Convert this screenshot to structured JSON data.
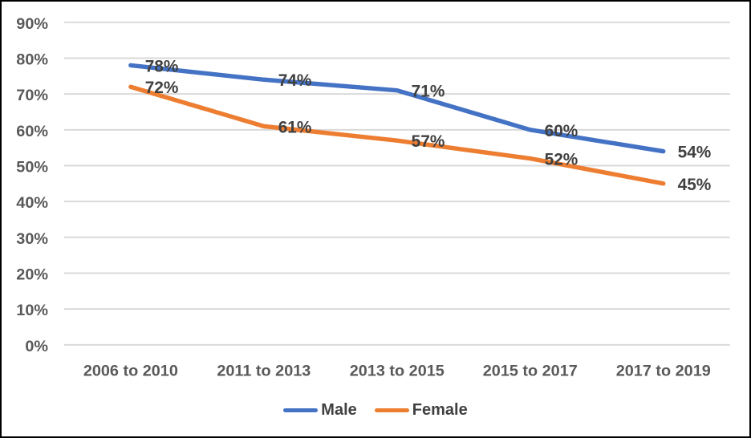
{
  "chart_data": {
    "type": "line",
    "categories": [
      "2006 to 2010",
      "2011 to 2013",
      "2013 to 2015",
      "2015 to 2017",
      "2017 to 2019"
    ],
    "series": [
      {
        "name": "Male",
        "values": [
          78,
          74,
          71,
          60,
          54
        ],
        "labels": [
          "78%",
          "74%",
          "71%",
          "60%",
          "54%"
        ],
        "color": "#4472C4"
      },
      {
        "name": "Female",
        "values": [
          72,
          61,
          57,
          52,
          45
        ],
        "labels": [
          "72%",
          "61%",
          "57%",
          "52%",
          "45%"
        ],
        "color": "#ED7D31"
      }
    ],
    "y_tick_labels": [
      "0%",
      "10%",
      "20%",
      "30%",
      "40%",
      "50%",
      "60%",
      "70%",
      "80%",
      "90%"
    ],
    "ylim": [
      0,
      90
    ],
    "y_step": 10,
    "grid": true,
    "gridlines": "horizontal",
    "legend_position": "bottom",
    "data_label_position": "right",
    "title": "",
    "xlabel": "",
    "ylabel": ""
  },
  "colors": {
    "male_line": "#4472C4",
    "female_line": "#ED7D31",
    "gridline": "#D9D9D9",
    "axis_text": "#595959",
    "data_label_text": "#404040",
    "border": "#000000",
    "background": "#FFFFFF"
  }
}
